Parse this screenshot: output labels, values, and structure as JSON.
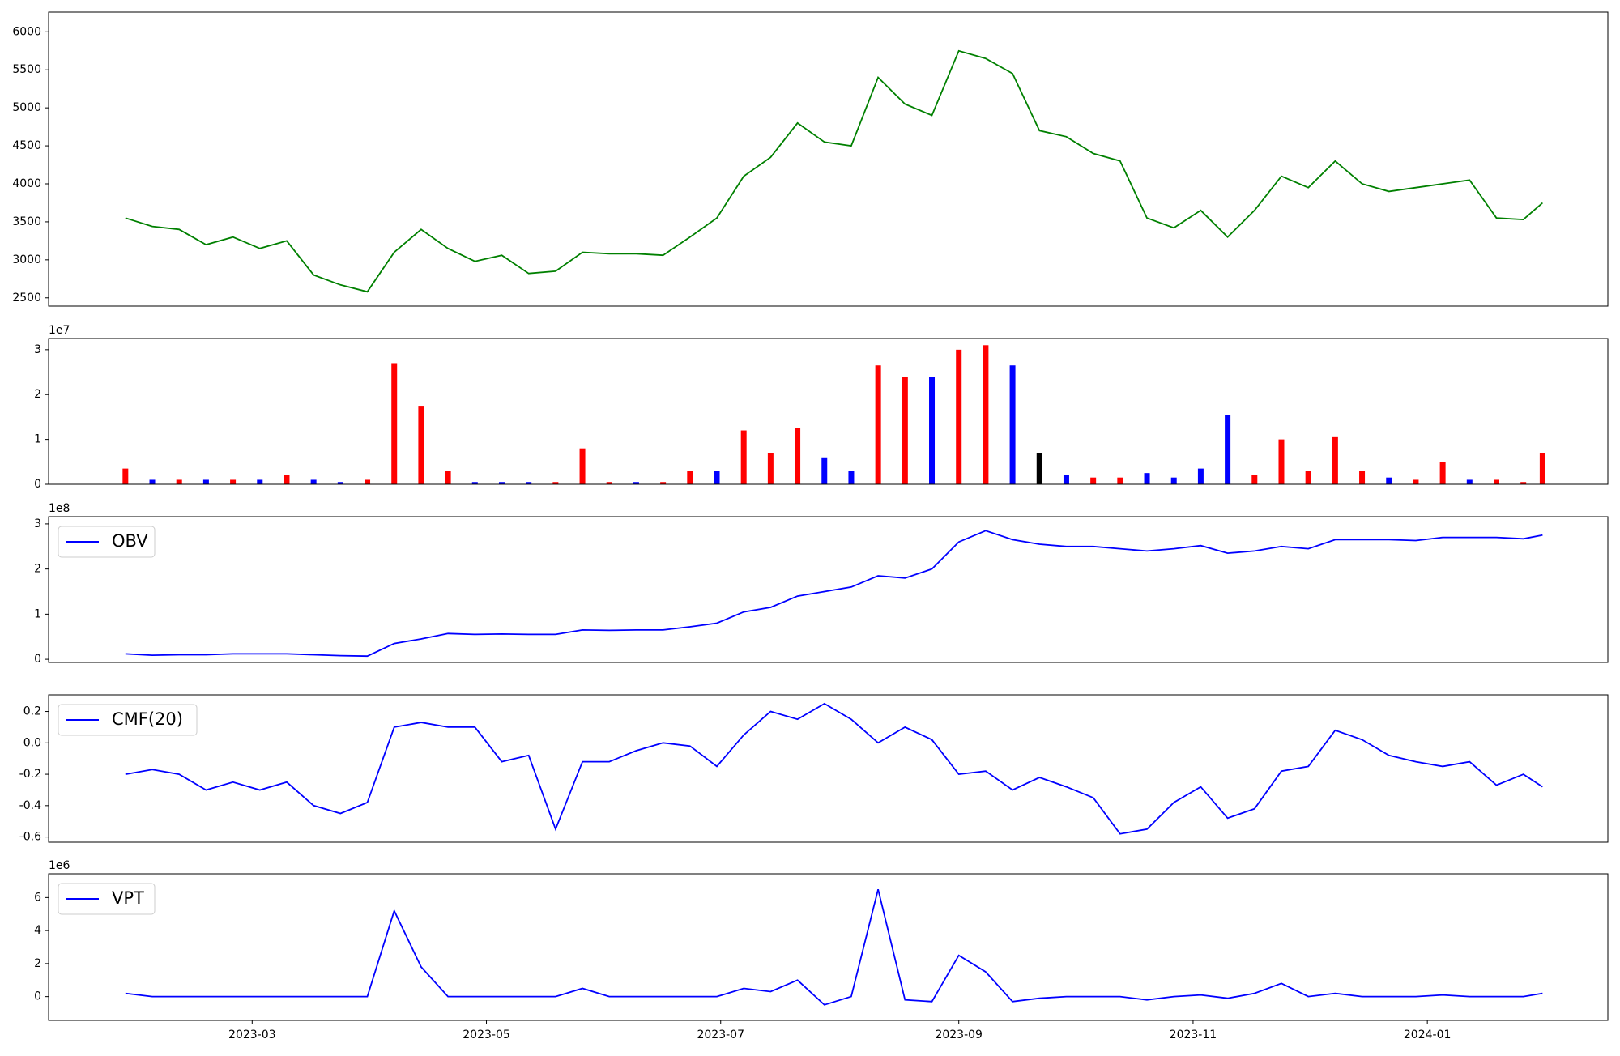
{
  "chart_data": [
    {
      "type": "line",
      "color": "#008000",
      "x": [
        "2023-01-27",
        "2023-02-03",
        "2023-02-10",
        "2023-02-17",
        "2023-02-24",
        "2023-03-03",
        "2023-03-10",
        "2023-03-17",
        "2023-03-24",
        "2023-03-31",
        "2023-04-07",
        "2023-04-14",
        "2023-04-21",
        "2023-04-28",
        "2023-05-05",
        "2023-05-12",
        "2023-05-19",
        "2023-05-26",
        "2023-06-02",
        "2023-06-09",
        "2023-06-16",
        "2023-06-23",
        "2023-06-30",
        "2023-07-07",
        "2023-07-14",
        "2023-07-21",
        "2023-07-28",
        "2023-08-04",
        "2023-08-11",
        "2023-08-18",
        "2023-08-25",
        "2023-09-01",
        "2023-09-08",
        "2023-09-15",
        "2023-09-22",
        "2023-09-29",
        "2023-10-06",
        "2023-10-13",
        "2023-10-20",
        "2023-10-27",
        "2023-11-03",
        "2023-11-10",
        "2023-11-17",
        "2023-11-24",
        "2023-12-01",
        "2023-12-08",
        "2023-12-15",
        "2023-12-22",
        "2023-12-29",
        "2024-01-05",
        "2024-01-12",
        "2024-01-19",
        "2024-01-26",
        "2024-01-31"
      ],
      "values": [
        3550,
        3440,
        3400,
        3200,
        3300,
        3150,
        3250,
        2800,
        2670,
        2580,
        3100,
        3400,
        3150,
        2980,
        3060,
        2820,
        2850,
        3100,
        3080,
        3080,
        3060,
        3300,
        3550,
        4100,
        4350,
        4800,
        4550,
        4500,
        5400,
        5050,
        4900,
        5750,
        5650,
        5450,
        4700,
        4620,
        4400,
        4300,
        3550,
        3420,
        3650,
        3300,
        3650,
        4100,
        3950,
        4300,
        4000,
        3900,
        3950,
        4000,
        4050,
        3550,
        3530,
        3750
      ],
      "xlim": [
        "2023-01-07",
        "2024-02-17"
      ],
      "ylim": [
        2391,
        6259
      ],
      "yticks": [
        2500,
        3000,
        3500,
        4000,
        4500,
        5000,
        5500,
        6000
      ]
    },
    {
      "type": "bar",
      "offset_label": "1e7",
      "x": [
        "2023-01-27",
        "2023-02-03",
        "2023-02-10",
        "2023-02-17",
        "2023-02-24",
        "2023-03-03",
        "2023-03-10",
        "2023-03-17",
        "2023-03-24",
        "2023-03-31",
        "2023-04-07",
        "2023-04-14",
        "2023-04-21",
        "2023-04-28",
        "2023-05-05",
        "2023-05-12",
        "2023-05-19",
        "2023-05-26",
        "2023-06-02",
        "2023-06-09",
        "2023-06-16",
        "2023-06-23",
        "2023-06-30",
        "2023-07-07",
        "2023-07-14",
        "2023-07-21",
        "2023-07-28",
        "2023-08-04",
        "2023-08-11",
        "2023-08-18",
        "2023-08-25",
        "2023-09-01",
        "2023-09-08",
        "2023-09-15",
        "2023-09-22",
        "2023-09-29",
        "2023-10-06",
        "2023-10-13",
        "2023-10-20",
        "2023-10-27",
        "2023-11-03",
        "2023-11-10",
        "2023-11-17",
        "2023-11-24",
        "2023-12-01",
        "2023-12-08",
        "2023-12-15",
        "2023-12-22",
        "2023-12-29",
        "2024-01-05",
        "2024-01-12",
        "2024-01-19",
        "2024-01-26",
        "2024-01-31"
      ],
      "values": [
        0.35,
        0.1,
        0.1,
        0.1,
        0.1,
        0.1,
        0.2,
        0.1,
        0.05,
        0.1,
        2.7,
        1.75,
        0.3,
        0.05,
        0.05,
        0.05,
        0.05,
        0.8,
        0.05,
        0.05,
        0.05,
        0.3,
        0.3,
        1.2,
        0.7,
        1.25,
        0.6,
        0.3,
        2.65,
        2.4,
        2.4,
        3.0,
        3.1,
        2.65,
        0.7,
        0.2,
        0.15,
        0.15,
        0.25,
        0.15,
        0.35,
        1.55,
        0.2,
        1.0,
        0.3,
        1.05,
        0.3,
        0.15,
        0.1,
        0.5,
        0.1,
        0.1,
        0.05,
        0.7
      ],
      "colors": [
        "red",
        "blue",
        "red",
        "blue",
        "red",
        "blue",
        "red",
        "blue",
        "blue",
        "red",
        "red",
        "red",
        "red",
        "blue",
        "blue",
        "blue",
        "red",
        "red",
        "red",
        "blue",
        "red",
        "red",
        "blue",
        "red",
        "red",
        "red",
        "blue",
        "blue",
        "red",
        "red",
        "blue",
        "red",
        "red",
        "blue",
        "black",
        "blue",
        "red",
        "red",
        "blue",
        "blue",
        "blue",
        "blue",
        "red",
        "red",
        "red",
        "red",
        "red",
        "blue",
        "red",
        "red",
        "blue",
        "red",
        "red",
        "red"
      ],
      "xlim": [
        "2023-01-07",
        "2024-02-17"
      ],
      "ylim": [
        0,
        3.25
      ],
      "yticks": [
        0,
        1,
        2,
        3
      ]
    },
    {
      "type": "line",
      "offset_label": "1e8",
      "x": [
        "2023-01-27",
        "2023-02-03",
        "2023-02-10",
        "2023-02-17",
        "2023-02-24",
        "2023-03-03",
        "2023-03-10",
        "2023-03-17",
        "2023-03-24",
        "2023-03-31",
        "2023-04-07",
        "2023-04-14",
        "2023-04-21",
        "2023-04-28",
        "2023-05-05",
        "2023-05-12",
        "2023-05-19",
        "2023-05-26",
        "2023-06-02",
        "2023-06-09",
        "2023-06-16",
        "2023-06-23",
        "2023-06-30",
        "2023-07-07",
        "2023-07-14",
        "2023-07-21",
        "2023-07-28",
        "2023-08-04",
        "2023-08-11",
        "2023-08-18",
        "2023-08-25",
        "2023-09-01",
        "2023-09-08",
        "2023-09-15",
        "2023-09-22",
        "2023-09-29",
        "2023-10-06",
        "2023-10-13",
        "2023-10-20",
        "2023-10-27",
        "2023-11-03",
        "2023-11-10",
        "2023-11-17",
        "2023-11-24",
        "2023-12-01",
        "2023-12-08",
        "2023-12-15",
        "2023-12-22",
        "2023-12-29",
        "2024-01-05",
        "2024-01-12",
        "2024-01-19",
        "2024-01-26",
        "2024-01-31"
      ],
      "series": [
        {
          "name": "OBV",
          "color": "#0000ff",
          "values": [
            0.12,
            0.09,
            0.1,
            0.1,
            0.12,
            0.12,
            0.12,
            0.1,
            0.08,
            0.07,
            0.35,
            0.45,
            0.57,
            0.55,
            0.56,
            0.55,
            0.55,
            0.65,
            0.64,
            0.65,
            0.65,
            0.72,
            0.8,
            1.05,
            1.15,
            1.4,
            1.5,
            1.6,
            1.85,
            1.8,
            2.0,
            2.6,
            2.85,
            2.65,
            2.55,
            2.5,
            2.5,
            2.45,
            2.4,
            2.45,
            2.52,
            2.35,
            2.4,
            2.5,
            2.45,
            2.65,
            2.65,
            2.65,
            2.63,
            2.7,
            2.7,
            2.7,
            2.67,
            2.75
          ]
        }
      ],
      "legend": "upper left",
      "xlim": [
        "2023-01-07",
        "2024-02-17"
      ],
      "ylim": [
        -0.07,
        3.16
      ],
      "yticks": [
        0,
        1,
        2,
        3
      ]
    },
    {
      "type": "line",
      "x": [
        "2023-01-27",
        "2023-02-03",
        "2023-02-10",
        "2023-02-17",
        "2023-02-24",
        "2023-03-03",
        "2023-03-10",
        "2023-03-17",
        "2023-03-24",
        "2023-03-31",
        "2023-04-07",
        "2023-04-14",
        "2023-04-21",
        "2023-04-28",
        "2023-05-05",
        "2023-05-12",
        "2023-05-19",
        "2023-05-26",
        "2023-06-02",
        "2023-06-09",
        "2023-06-16",
        "2023-06-23",
        "2023-06-30",
        "2023-07-07",
        "2023-07-14",
        "2023-07-21",
        "2023-07-28",
        "2023-08-04",
        "2023-08-11",
        "2023-08-18",
        "2023-08-25",
        "2023-09-01",
        "2023-09-08",
        "2023-09-15",
        "2023-09-22",
        "2023-09-29",
        "2023-10-06",
        "2023-10-13",
        "2023-10-20",
        "2023-10-27",
        "2023-11-03",
        "2023-11-10",
        "2023-11-17",
        "2023-11-24",
        "2023-12-01",
        "2023-12-08",
        "2023-12-15",
        "2023-12-22",
        "2023-12-29",
        "2024-01-05",
        "2024-01-12",
        "2024-01-19",
        "2024-01-26",
        "2024-01-31"
      ],
      "series": [
        {
          "name": "CMF(20)",
          "color": "#0000ff",
          "values": [
            -0.2,
            -0.17,
            -0.2,
            -0.3,
            -0.25,
            -0.3,
            -0.25,
            -0.4,
            -0.45,
            -0.38,
            0.1,
            0.13,
            0.1,
            0.1,
            -0.12,
            -0.08,
            -0.55,
            -0.12,
            -0.12,
            -0.05,
            0,
            -0.02,
            -0.15,
            0.05,
            0.2,
            0.15,
            0.25,
            0.15,
            0.0,
            0.1,
            0.02,
            -0.2,
            -0.18,
            -0.3,
            -0.22,
            -0.28,
            -0.35,
            -0.58,
            -0.55,
            -0.38,
            -0.28,
            -0.48,
            -0.42,
            -0.18,
            -0.15,
            0.08,
            0.02,
            -0.08,
            -0.12,
            -0.15,
            -0.12,
            -0.27,
            -0.2,
            -0.28
          ]
        }
      ],
      "legend": "upper left",
      "xlim": [
        "2023-01-07",
        "2024-02-17"
      ],
      "ylim": [
        -0.633,
        0.306
      ],
      "yticks": [
        -0.6,
        -0.4,
        -0.2,
        {
          "value": 0,
          "label": "0.0"
        },
        0.2
      ]
    },
    {
      "type": "line",
      "offset_label": "1e6",
      "x": [
        "2023-01-27",
        "2023-02-03",
        "2023-02-10",
        "2023-02-17",
        "2023-02-24",
        "2023-03-03",
        "2023-03-10",
        "2023-03-17",
        "2023-03-24",
        "2023-03-31",
        "2023-04-07",
        "2023-04-14",
        "2023-04-21",
        "2023-04-28",
        "2023-05-05",
        "2023-05-12",
        "2023-05-19",
        "2023-05-26",
        "2023-06-02",
        "2023-06-09",
        "2023-06-16",
        "2023-06-23",
        "2023-06-30",
        "2023-07-07",
        "2023-07-14",
        "2023-07-21",
        "2023-07-28",
        "2023-08-04",
        "2023-08-11",
        "2023-08-18",
        "2023-08-25",
        "2023-09-01",
        "2023-09-08",
        "2023-09-15",
        "2023-09-22",
        "2023-09-29",
        "2023-10-06",
        "2023-10-13",
        "2023-10-20",
        "2023-10-27",
        "2023-11-03",
        "2023-11-10",
        "2023-11-17",
        "2023-11-24",
        "2023-12-01",
        "2023-12-08",
        "2023-12-15",
        "2023-12-22",
        "2023-12-29",
        "2024-01-05",
        "2024-01-12",
        "2024-01-19",
        "2024-01-26",
        "2024-01-31"
      ],
      "series": [
        {
          "name": "VPT",
          "color": "#0000ff",
          "values": [
            0.2,
            0,
            0,
            0,
            0,
            0,
            0,
            0,
            0,
            0,
            5.2,
            1.8,
            0,
            0,
            0,
            0,
            0,
            0.5,
            0,
            0,
            0,
            0,
            0,
            0.5,
            0.3,
            1.0,
            -0.5,
            0,
            6.5,
            -0.2,
            -0.3,
            2.5,
            1.5,
            -0.3,
            -0.1,
            0,
            0,
            0,
            -0.2,
            0,
            0.1,
            -0.1,
            0.2,
            0.8,
            0,
            0.2,
            0,
            0,
            0,
            0.1,
            0,
            0,
            0,
            0.2
          ]
        }
      ],
      "legend": "upper left",
      "xlim": [
        "2023-01-07",
        "2024-02-17"
      ],
      "ylim": [
        -1.44,
        7.44
      ],
      "yticks": [
        0,
        2,
        4,
        6
      ],
      "xticks": [
        {
          "value": "2023-03-01",
          "label": "2023-03"
        },
        {
          "value": "2023-05-01",
          "label": "2023-05"
        },
        {
          "value": "2023-07-01",
          "label": "2023-07"
        },
        {
          "value": "2023-09-01",
          "label": "2023-09"
        },
        {
          "value": "2023-11-01",
          "label": "2023-11"
        },
        {
          "value": "2024-01-01",
          "label": "2024-01"
        }
      ]
    }
  ]
}
